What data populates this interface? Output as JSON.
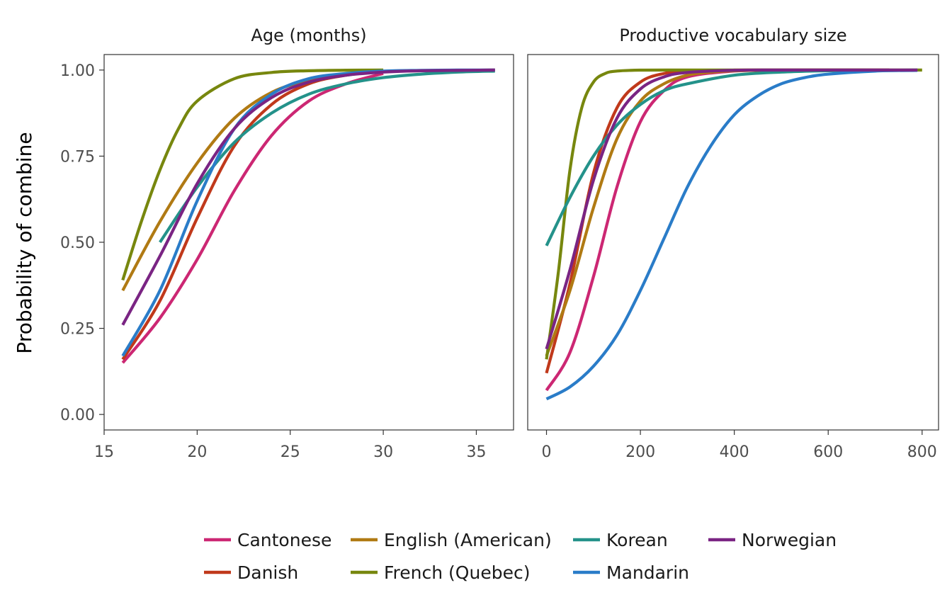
{
  "chart_data": [
    {
      "type": "line",
      "title": "Age (months)",
      "xlabel": "",
      "ylabel": "Probability of combine",
      "xlim": [
        15,
        37
      ],
      "ylim": [
        0,
        1
      ],
      "x_ticks": [
        15,
        20,
        25,
        30,
        35
      ],
      "y_ticks": [
        0,
        0.25,
        0.5,
        0.75,
        1
      ],
      "x_tick_labels": [
        "15",
        "20",
        "25",
        "30",
        "35"
      ],
      "y_tick_labels": [
        "0.00",
        "0.25",
        "0.50",
        "0.75",
        "1.00"
      ],
      "grid": false,
      "series": [
        {
          "name": "Cantonese",
          "color": "#cc2773",
          "x": [
            16,
            18,
            20,
            22,
            24,
            26,
            28,
            30
          ],
          "y": [
            0.15,
            0.28,
            0.45,
            0.65,
            0.81,
            0.91,
            0.96,
            0.99
          ]
        },
        {
          "name": "Danish",
          "color": "#c0391b",
          "x": [
            16,
            18,
            20,
            22,
            24,
            26,
            28,
            30,
            32,
            34,
            36
          ],
          "y": [
            0.16,
            0.33,
            0.57,
            0.78,
            0.9,
            0.96,
            0.985,
            0.995,
            0.998,
            0.999,
            1.0
          ]
        },
        {
          "name": "English (American)",
          "color": "#b07a13",
          "x": [
            16,
            18,
            20,
            22,
            24,
            26,
            28,
            30
          ],
          "y": [
            0.36,
            0.56,
            0.73,
            0.86,
            0.935,
            0.97,
            0.987,
            0.995
          ]
        },
        {
          "name": "French (Quebec)",
          "color": "#77870e",
          "x": [
            16,
            17,
            18,
            19,
            20,
            22,
            24,
            26,
            28,
            30
          ],
          "y": [
            0.39,
            0.56,
            0.71,
            0.83,
            0.91,
            0.975,
            0.993,
            0.998,
            0.9995,
            1.0
          ]
        },
        {
          "name": "Korean",
          "color": "#24928a",
          "x": [
            18,
            20,
            22,
            24,
            26,
            28,
            30,
            32,
            34,
            36
          ],
          "y": [
            0.5,
            0.66,
            0.79,
            0.875,
            0.93,
            0.96,
            0.978,
            0.988,
            0.994,
            0.997
          ]
        },
        {
          "name": "Mandarin",
          "color": "#2a7cc8",
          "x": [
            16,
            18,
            20,
            22,
            24,
            26,
            28,
            30,
            32,
            34,
            36
          ],
          "y": [
            0.17,
            0.36,
            0.62,
            0.83,
            0.93,
            0.975,
            0.99,
            0.997,
            0.999,
            1.0,
            1.0
          ]
        },
        {
          "name": "Norwegian",
          "color": "#7a2483",
          "x": [
            16,
            18,
            20,
            22,
            24,
            26,
            28,
            30,
            32,
            34,
            36
          ],
          "y": [
            0.26,
            0.46,
            0.67,
            0.83,
            0.92,
            0.965,
            0.985,
            0.994,
            0.998,
            0.999,
            1.0
          ]
        }
      ]
    },
    {
      "type": "line",
      "title": "Productive vocabulary size",
      "xlabel": "",
      "ylabel": "Probability of combine",
      "xlim": [
        -40,
        835
      ],
      "ylim": [
        0,
        1
      ],
      "x_ticks": [
        0,
        200,
        400,
        600,
        800
      ],
      "y_ticks": [
        0,
        0.25,
        0.5,
        0.75,
        1
      ],
      "x_tick_labels": [
        "0",
        "200",
        "400",
        "600",
        "800"
      ],
      "y_tick_labels": [
        "0.00",
        "0.25",
        "0.50",
        "0.75",
        "1.00"
      ],
      "grid": false,
      "series": [
        {
          "name": "Cantonese",
          "color": "#cc2773",
          "x": [
            0,
            50,
            100,
            150,
            200,
            250,
            300,
            400,
            500,
            600,
            730
          ],
          "y": [
            0.07,
            0.18,
            0.4,
            0.66,
            0.85,
            0.94,
            0.98,
            0.997,
            0.9995,
            1.0,
            1.0
          ]
        },
        {
          "name": "Danish",
          "color": "#c0391b",
          "x": [
            0,
            50,
            100,
            150,
            200,
            250,
            300,
            400,
            500,
            600,
            730
          ],
          "y": [
            0.12,
            0.38,
            0.7,
            0.89,
            0.965,
            0.99,
            0.997,
            0.9997,
            1.0,
            1.0,
            1.0
          ]
        },
        {
          "name": "English (American)",
          "color": "#b07a13",
          "x": [
            0,
            50,
            100,
            150,
            200,
            250,
            300,
            350,
            400,
            500,
            600,
            680
          ],
          "y": [
            0.17,
            0.36,
            0.6,
            0.8,
            0.91,
            0.96,
            0.985,
            0.994,
            0.998,
            0.9997,
            1.0,
            1.0
          ]
        },
        {
          "name": "French (Quebec)",
          "color": "#77870e",
          "x": [
            0,
            25,
            50,
            75,
            100,
            125,
            150,
            200,
            300,
            400,
            500,
            600,
            700,
            800
          ],
          "y": [
            0.16,
            0.41,
            0.71,
            0.89,
            0.965,
            0.99,
            0.997,
            0.9997,
            1.0,
            1.0,
            1.0,
            1.0,
            1.0,
            1.0
          ]
        },
        {
          "name": "Korean",
          "color": "#24928a",
          "x": [
            0,
            50,
            100,
            150,
            200,
            250,
            300,
            400,
            500,
            600,
            700,
            790
          ],
          "y": [
            0.49,
            0.63,
            0.75,
            0.84,
            0.9,
            0.94,
            0.96,
            0.985,
            0.994,
            0.998,
            0.999,
            1.0
          ]
        },
        {
          "name": "Mandarin",
          "color": "#2a7cc8",
          "x": [
            0,
            50,
            100,
            150,
            200,
            250,
            300,
            350,
            400,
            450,
            500,
            550,
            600,
            700,
            790
          ],
          "y": [
            0.045,
            0.08,
            0.14,
            0.23,
            0.36,
            0.51,
            0.66,
            0.78,
            0.87,
            0.925,
            0.96,
            0.978,
            0.988,
            0.997,
            0.999
          ]
        },
        {
          "name": "Norwegian",
          "color": "#7a2483",
          "x": [
            0,
            50,
            100,
            150,
            200,
            250,
            300,
            400,
            500,
            600,
            700,
            790
          ],
          "y": [
            0.19,
            0.42,
            0.68,
            0.86,
            0.945,
            0.98,
            0.993,
            0.9993,
            1.0,
            1.0,
            1.0,
            1.0
          ]
        }
      ]
    }
  ],
  "legend": {
    "position": "bottom",
    "rows": [
      [
        "Cantonese",
        "English (American)",
        "Korean",
        "Norwegian"
      ],
      [
        "Danish",
        "French (Quebec)",
        "Mandarin"
      ]
    ]
  }
}
